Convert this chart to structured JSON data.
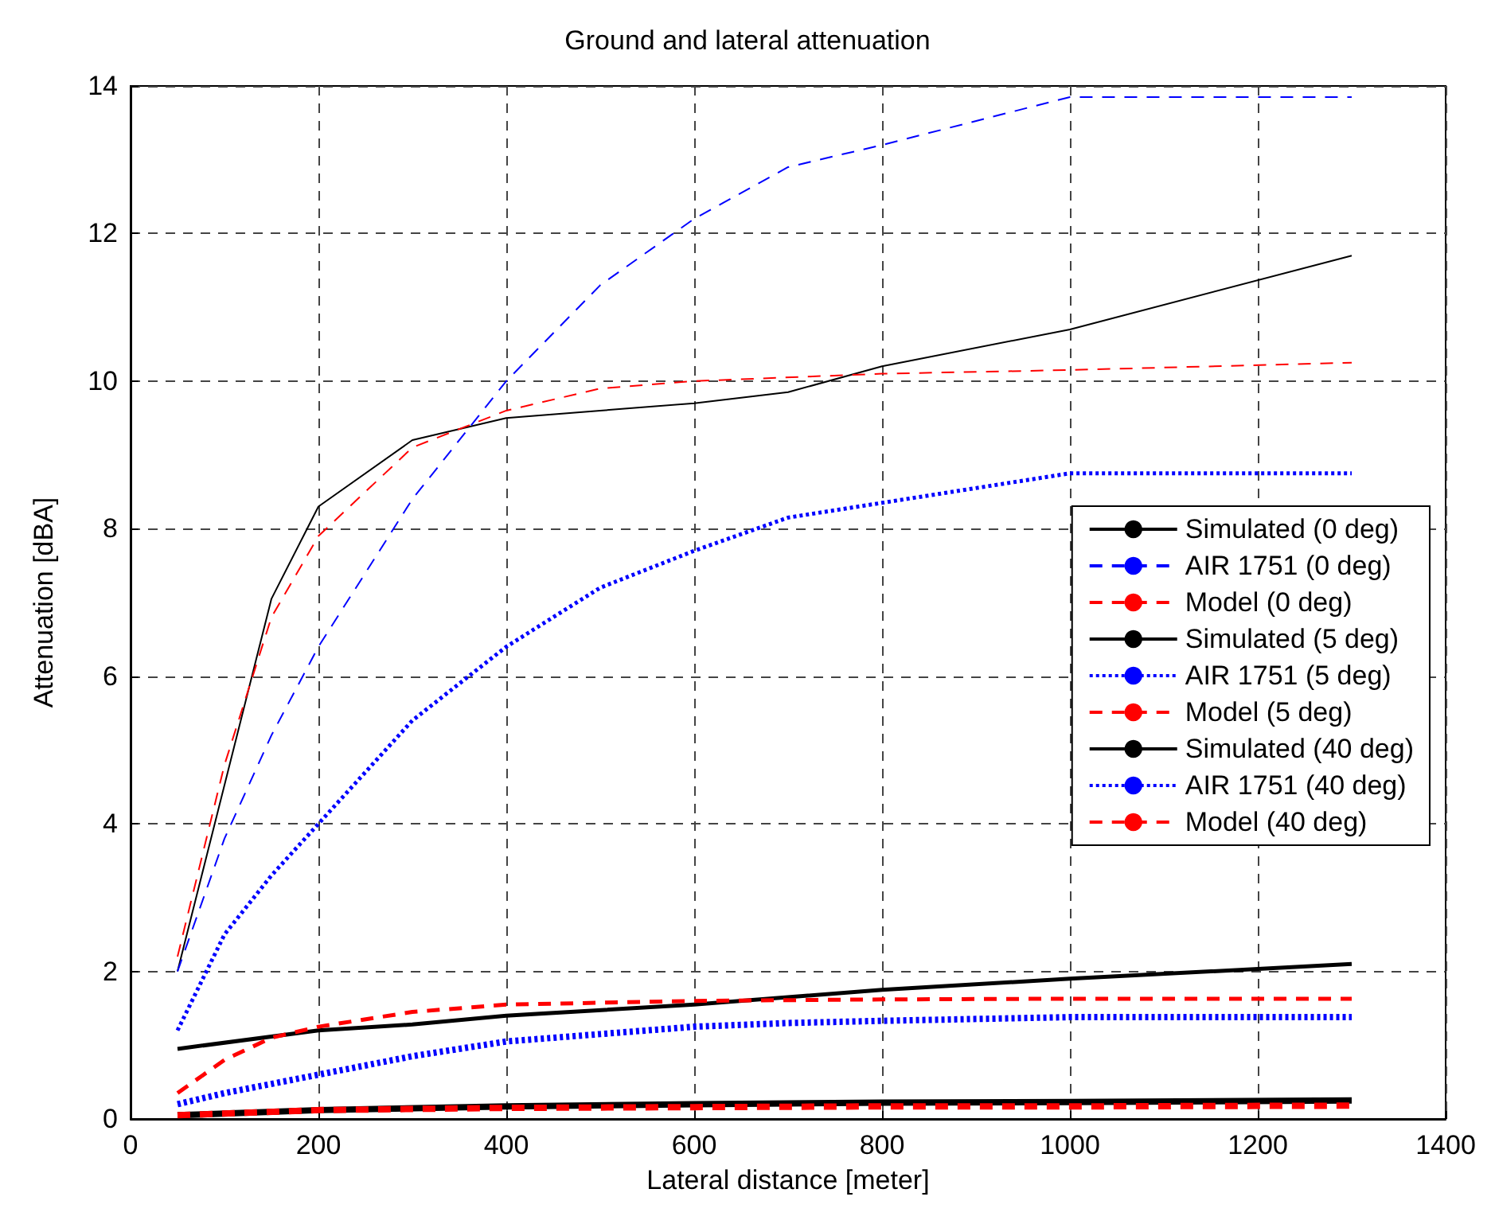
{
  "chart_data": {
    "type": "line",
    "title": "Ground and lateral attenuation",
    "xlabel": "Lateral distance [meter]",
    "ylabel": "Attenuation [dBA]",
    "xlim": [
      0,
      1400
    ],
    "xticks": [
      0,
      200,
      400,
      600,
      800,
      1000,
      1200,
      1400
    ],
    "ylim": [
      0,
      14
    ],
    "yticks": [
      0,
      2,
      4,
      6,
      8,
      10,
      12,
      14
    ],
    "grid": true,
    "legend": "right",
    "marker": "none",
    "series": [
      {
        "name": "Simulated (0 deg)",
        "color": "#000000",
        "line_style": "solid",
        "x": [
          50,
          150,
          200,
          300,
          400,
          500,
          600,
          700,
          800,
          1000,
          1300
        ],
        "values": [
          2.0,
          7.05,
          8.3,
          9.2,
          9.5,
          9.6,
          9.7,
          9.85,
          10.2,
          10.7,
          11.7
        ]
      },
      {
        "name": "AIR 1751 (0 deg)",
        "color": "#0000ff",
        "line_style": "dashed",
        "x": [
          50,
          100,
          150,
          200,
          300,
          400,
          500,
          600,
          700,
          800,
          1000,
          1300
        ],
        "values": [
          2.0,
          3.8,
          5.2,
          6.4,
          8.4,
          10.0,
          11.3,
          12.2,
          12.9,
          13.2,
          13.85,
          13.85
        ]
      },
      {
        "name": "Model (0 deg)",
        "color": "#ff0000",
        "line_style": "dashed",
        "x": [
          50,
          100,
          150,
          200,
          300,
          400,
          500,
          600,
          800,
          1000,
          1300
        ],
        "values": [
          2.2,
          4.8,
          6.8,
          7.9,
          9.1,
          9.6,
          9.9,
          10.0,
          10.1,
          10.15,
          10.25
        ]
      },
      {
        "name": "Simulated (5 deg)",
        "color": "#000000",
        "line_style": "solid",
        "x": [
          50,
          200,
          300,
          400,
          600,
          800,
          1000,
          1300
        ],
        "values": [
          0.95,
          1.2,
          1.28,
          1.4,
          1.55,
          1.75,
          1.9,
          2.1
        ]
      },
      {
        "name": "AIR 1751 (5 deg)",
        "color": "#0000ff",
        "line_style": "dotted",
        "x": [
          50,
          100,
          150,
          200,
          300,
          400,
          500,
          600,
          700,
          800,
          1000,
          1300
        ],
        "values": [
          1.2,
          2.5,
          3.3,
          4.0,
          5.4,
          6.4,
          7.2,
          7.7,
          8.15,
          8.35,
          8.75,
          8.75
        ]
      },
      {
        "name": "Model (5 deg)",
        "color": "#ff0000",
        "line_style": "dashed",
        "x": [
          50,
          100,
          150,
          200,
          300,
          400,
          600,
          800,
          1000,
          1300
        ],
        "values": [
          0.35,
          0.8,
          1.1,
          1.25,
          1.45,
          1.55,
          1.6,
          1.62,
          1.63,
          1.63
        ]
      },
      {
        "name": "Simulated (40 deg)",
        "color": "#000000",
        "line_style": "solid",
        "x": [
          50,
          200,
          400,
          600,
          800,
          1000,
          1300
        ],
        "values": [
          0.05,
          0.12,
          0.17,
          0.2,
          0.22,
          0.23,
          0.25
        ]
      },
      {
        "name": "AIR 1751 (40 deg)",
        "color": "#0000ff",
        "line_style": "dotted",
        "x": [
          50,
          100,
          200,
          300,
          400,
          500,
          600,
          700,
          800,
          1000,
          1300
        ],
        "values": [
          0.2,
          0.35,
          0.6,
          0.85,
          1.05,
          1.15,
          1.25,
          1.3,
          1.33,
          1.38,
          1.38
        ]
      },
      {
        "name": "Model (40 deg)",
        "color": "#ff0000",
        "line_style": "dashed",
        "x": [
          50,
          200,
          400,
          600,
          800,
          1000,
          1300
        ],
        "values": [
          0.05,
          0.12,
          0.15,
          0.16,
          0.17,
          0.17,
          0.18
        ]
      }
    ]
  }
}
